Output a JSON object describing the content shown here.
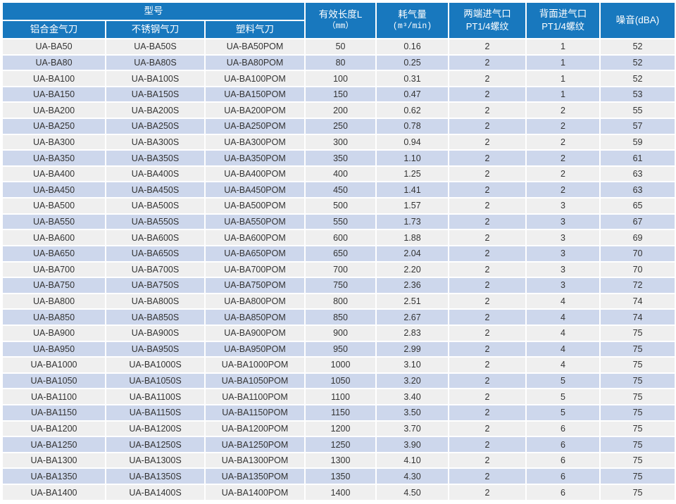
{
  "colors": {
    "header_bg": "#1878BE",
    "header_text": "#FFFFFF",
    "row_odd_bg": "#EFEFEF",
    "row_even_bg": "#CDD7EC",
    "cell_text": "#333333",
    "grid_line": "#FFFFFF"
  },
  "table": {
    "header": {
      "model_group": "型号",
      "sub": {
        "aluminum": "铝合金气刀",
        "stainless": "不锈钢气刀",
        "plastic": "塑料气刀"
      },
      "length": {
        "line1": "有效长度L",
        "line2": "（mm）"
      },
      "air": {
        "line1": "耗气量",
        "line2": "(m³/min)"
      },
      "inlet_both": {
        "line1": "两端进气口",
        "line2": "PT1/4螺纹"
      },
      "inlet_back": {
        "line1": "背面进气口",
        "line2": "PT1/4螺纹"
      },
      "noise": "噪音(dBA)"
    },
    "rows": [
      [
        "UA-BA50",
        "UA-BA50S",
        "UA-BA50POM",
        "50",
        "0.16",
        "2",
        "1",
        "52"
      ],
      [
        "UA-BA80",
        "UA-BA80S",
        "UA-BA80POM",
        "80",
        "0.25",
        "2",
        "1",
        "52"
      ],
      [
        "UA-BA100",
        "UA-BA100S",
        "UA-BA100POM",
        "100",
        "0.31",
        "2",
        "1",
        "52"
      ],
      [
        "UA-BA150",
        "UA-BA150S",
        "UA-BA150POM",
        "150",
        "0.47",
        "2",
        "1",
        "53"
      ],
      [
        "UA-BA200",
        "UA-BA200S",
        "UA-BA200POM",
        "200",
        "0.62",
        "2",
        "2",
        "55"
      ],
      [
        "UA-BA250",
        "UA-BA250S",
        "UA-BA250POM",
        "250",
        "0.78",
        "2",
        "2",
        "57"
      ],
      [
        "UA-BA300",
        "UA-BA300S",
        "UA-BA300POM",
        "300",
        "0.94",
        "2",
        "2",
        "59"
      ],
      [
        "UA-BA350",
        "UA-BA350S",
        "UA-BA350POM",
        "350",
        "1.10",
        "2",
        "2",
        "61"
      ],
      [
        "UA-BA400",
        "UA-BA400S",
        "UA-BA400POM",
        "400",
        "1.25",
        "2",
        "2",
        "63"
      ],
      [
        "UA-BA450",
        "UA-BA450S",
        "UA-BA450POM",
        "450",
        "1.41",
        "2",
        "2",
        "63"
      ],
      [
        "UA-BA500",
        "UA-BA500S",
        "UA-BA500POM",
        "500",
        "1.57",
        "2",
        "3",
        "65"
      ],
      [
        "UA-BA550",
        "UA-BA550S",
        "UA-BA550POM",
        "550",
        "1.73",
        "2",
        "3",
        "67"
      ],
      [
        "UA-BA600",
        "UA-BA600S",
        "UA-BA600POM",
        "600",
        "1.88",
        "2",
        "3",
        "69"
      ],
      [
        "UA-BA650",
        "UA-BA650S",
        "UA-BA650POM",
        "650",
        "2.04",
        "2",
        "3",
        "70"
      ],
      [
        "UA-BA700",
        "UA-BA700S",
        "UA-BA700POM",
        "700",
        "2.20",
        "2",
        "3",
        "70"
      ],
      [
        "UA-BA750",
        "UA-BA750S",
        "UA-BA750POM",
        "750",
        "2.36",
        "2",
        "3",
        "72"
      ],
      [
        "UA-BA800",
        "UA-BA800S",
        "UA-BA800POM",
        "800",
        "2.51",
        "2",
        "4",
        "74"
      ],
      [
        "UA-BA850",
        "UA-BA850S",
        "UA-BA850POM",
        "850",
        "2.67",
        "2",
        "4",
        "74"
      ],
      [
        "UA-BA900",
        "UA-BA900S",
        "UA-BA900POM",
        "900",
        "2.83",
        "2",
        "4",
        "75"
      ],
      [
        "UA-BA950",
        "UA-BA950S",
        "UA-BA950POM",
        "950",
        "2.99",
        "2",
        "4",
        "75"
      ],
      [
        "UA-BA1000",
        "UA-BA1000S",
        "UA-BA1000POM",
        "1000",
        "3.10",
        "2",
        "4",
        "75"
      ],
      [
        "UA-BA1050",
        "UA-BA1050S",
        "UA-BA1050POM",
        "1050",
        "3.20",
        "2",
        "5",
        "75"
      ],
      [
        "UA-BA1100",
        "UA-BA1100S",
        "UA-BA1100POM",
        "1100",
        "3.40",
        "2",
        "5",
        "75"
      ],
      [
        "UA-BA1150",
        "UA-BA1150S",
        "UA-BA1150POM",
        "1150",
        "3.50",
        "2",
        "5",
        "75"
      ],
      [
        "UA-BA1200",
        "UA-BA1200S",
        "UA-BA1200POM",
        "1200",
        "3.70",
        "2",
        "6",
        "75"
      ],
      [
        "UA-BA1250",
        "UA-BA1250S",
        "UA-BA1250POM",
        "1250",
        "3.90",
        "2",
        "6",
        "75"
      ],
      [
        "UA-BA1300",
        "UA-BA1300S",
        "UA-BA1300POM",
        "1300",
        "4.10",
        "2",
        "6",
        "75"
      ],
      [
        "UA-BA1350",
        "UA-BA1350S",
        "UA-BA1350POM",
        "1350",
        "4.30",
        "2",
        "6",
        "75"
      ],
      [
        "UA-BA1400",
        "UA-BA1400S",
        "UA-BA1400POM",
        "1400",
        "4.50",
        "2",
        "6",
        "75"
      ]
    ]
  }
}
